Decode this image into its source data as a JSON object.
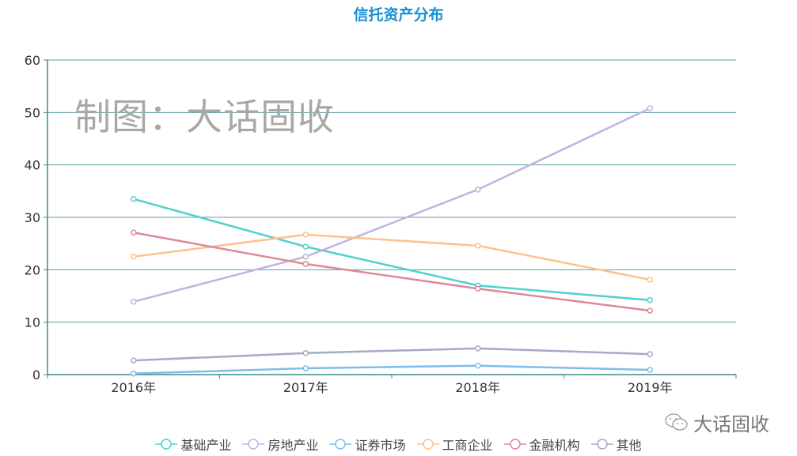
{
  "chart_data": {
    "type": "line",
    "title": "信托资产分布",
    "categories": [
      "2016年",
      "2017年",
      "2018年",
      "2019年"
    ],
    "ylim": [
      0,
      60
    ],
    "yticks": [
      0,
      10,
      20,
      30,
      40,
      50,
      60
    ],
    "grid": true,
    "legend_position": "bottom",
    "series": [
      {
        "name": "基础产业",
        "color": "#4fd1d0",
        "values": [
          33.5,
          24.4,
          17.0,
          14.2
        ]
      },
      {
        "name": "房地产业",
        "color": "#c1b3e1",
        "values": [
          13.9,
          22.5,
          35.3,
          50.8
        ]
      },
      {
        "name": "证券市场",
        "color": "#7dbdea",
        "values": [
          0.2,
          1.2,
          1.7,
          0.9
        ]
      },
      {
        "name": "工商企业",
        "color": "#fcc18e",
        "values": [
          22.5,
          26.7,
          24.6,
          18.1
        ]
      },
      {
        "name": "金融机构",
        "color": "#dc8a93",
        "values": [
          27.1,
          21.1,
          16.4,
          12.2
        ]
      },
      {
        "name": "其他",
        "color": "#a3abc3",
        "values": [
          2.7,
          4.1,
          5.0,
          3.9
        ]
      }
    ]
  },
  "watermark": "制图：大话固收",
  "brand": {
    "icon": "wechat-icon",
    "text": "大话固收"
  }
}
